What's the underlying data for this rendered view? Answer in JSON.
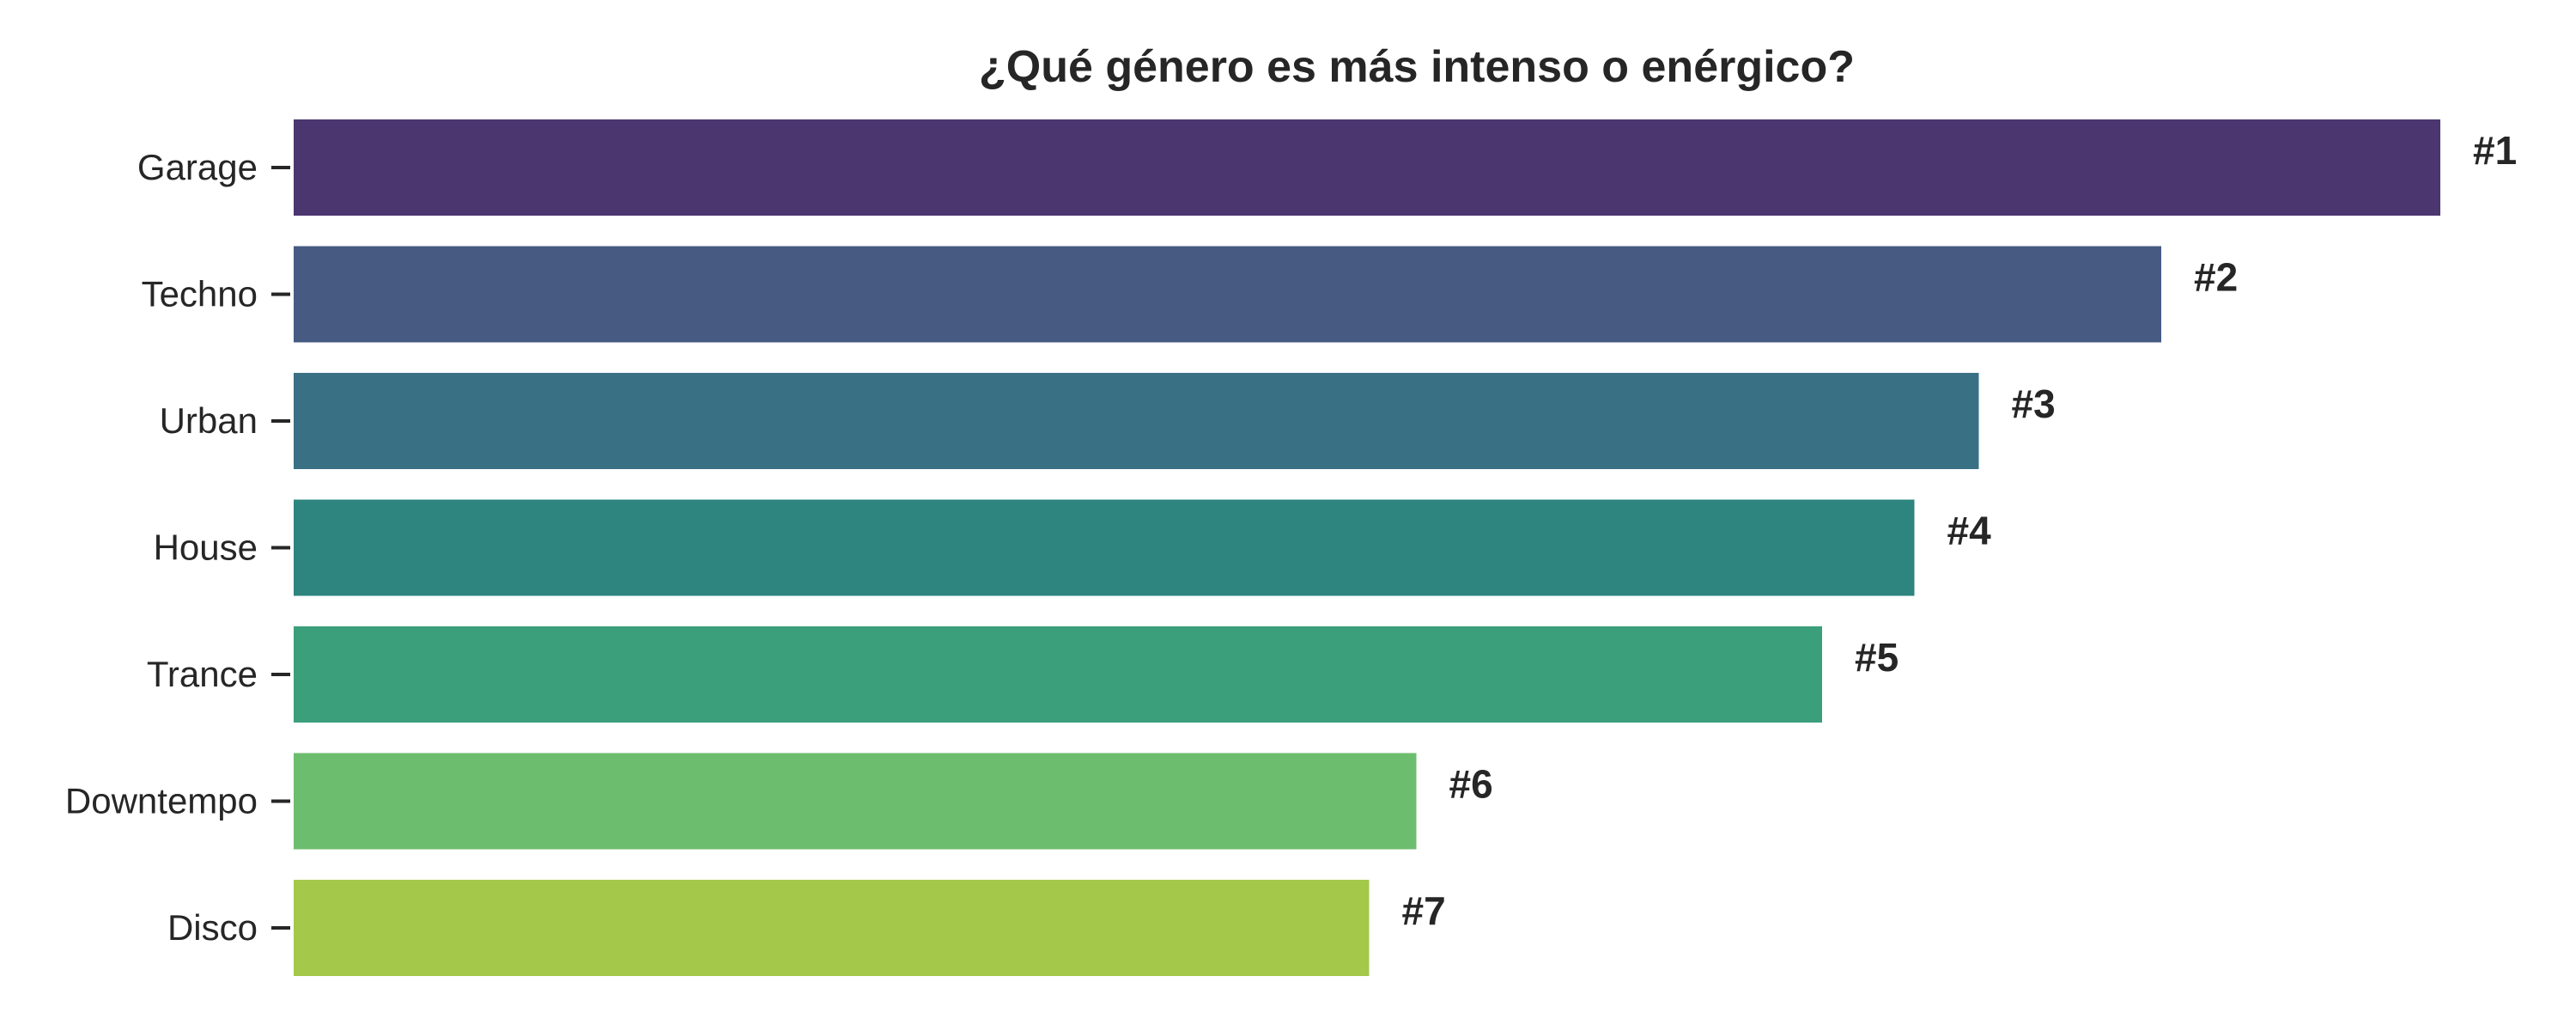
{
  "chart_data": {
    "type": "bar",
    "orientation": "horizontal",
    "title": "¿Qué género es más intenso o enérgico?",
    "xlabel": "",
    "ylabel": "",
    "categories": [
      "Garage",
      "Techno",
      "Urban",
      "House",
      "Trance",
      "Downtempo",
      "Disco"
    ],
    "values": [
      1.0,
      0.87,
      0.785,
      0.755,
      0.712,
      0.523,
      0.501
    ],
    "labels": [
      "#1",
      "#2",
      "#3",
      "#4",
      "#5",
      "#6",
      "#7"
    ],
    "xlim": [
      0,
      1.0
    ],
    "colors": [
      "#4b3670",
      "#465a82",
      "#3a7084",
      "#2e847e",
      "#3b9f7c",
      "#6dbd6e",
      "#a3c84a"
    ],
    "grid": false,
    "legend": "none"
  }
}
